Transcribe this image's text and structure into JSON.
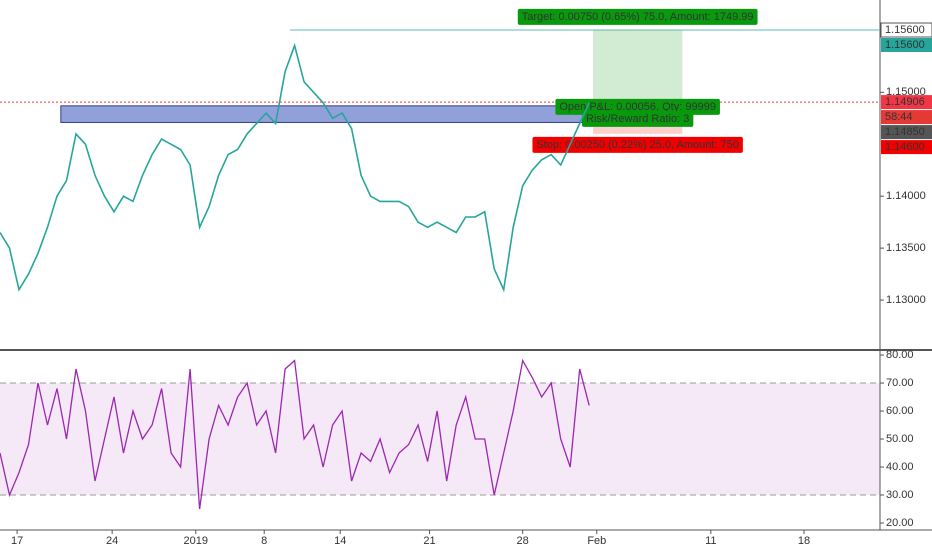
{
  "chart_data": [
    {
      "type": "line",
      "color": "#26a69a",
      "xlim": [
        0,
        46.3
      ],
      "ylim": [
        1.12519,
        1.15889
      ],
      "yticks": [
        {
          "value": 1.13,
          "label": "1.13000"
        },
        {
          "value": 1.135,
          "label": "1.13500"
        },
        {
          "value": 1.14,
          "label": "1.14000"
        },
        {
          "value": 1.15,
          "label": "1.15000"
        }
      ],
      "x": [
        0,
        0.5,
        1,
        1.5,
        2,
        2.5,
        3,
        3.5,
        4,
        4.5,
        5,
        5.5,
        6,
        6.5,
        7,
        7.5,
        8,
        8.5,
        9,
        9.5,
        10,
        10.5,
        11,
        11.5,
        12,
        12.5,
        13,
        13.5,
        14,
        14.5,
        15,
        15.5,
        16,
        16.5,
        17,
        17.5,
        18,
        18.5,
        19,
        19.5,
        20,
        20.5,
        21,
        21.5,
        22,
        22.5,
        23,
        23.5,
        24,
        24.5,
        25,
        25.5,
        26,
        26.5,
        27,
        27.5,
        28,
        28.5,
        29,
        29.5,
        30,
        30.5,
        31
      ],
      "values": [
        1.1365,
        1.135,
        1.131,
        1.1325,
        1.1345,
        1.137,
        1.14,
        1.1415,
        1.146,
        1.145,
        1.142,
        1.14,
        1.1385,
        1.14,
        1.1395,
        1.142,
        1.144,
        1.1455,
        1.145,
        1.1445,
        1.143,
        1.137,
        1.139,
        1.142,
        1.144,
        1.1445,
        1.146,
        1.147,
        1.148,
        1.147,
        1.152,
        1.1545,
        1.151,
        1.15,
        1.149,
        1.1475,
        1.148,
        1.1465,
        1.142,
        1.14,
        1.1395,
        1.1395,
        1.1395,
        1.139,
        1.1375,
        1.137,
        1.1375,
        1.137,
        1.1365,
        1.138,
        1.138,
        1.1385,
        1.133,
        1.131,
        1.137,
        1.141,
        1.1425,
        1.1435,
        1.144,
        1.143,
        1.145,
        1.147,
        1.149
      ],
      "zone": {
        "x": [
          3.2,
          31.0
        ],
        "top": 1.1487,
        "bottom": 1.1471,
        "color": "#7f8fd4"
      },
      "position": {
        "x": [
          31.2,
          35.9
        ],
        "entry": 1.14906,
        "target": 1.156,
        "stop": 1.146,
        "target_label": "Target: 0.00750 (0.65%) 75.0, Amount: 1749.99",
        "pnl_label": "Open P&L: 0.00056, Qty: 99999",
        "ratio_label": "Risk/Reward Ratio: 3",
        "stop_label": "Stop: 0.00250 (0.22%) 25.0, Amount: 750"
      },
      "price_tags": [
        {
          "value": 1.156,
          "label": "1.15600",
          "color": "#ffffff"
        },
        {
          "value": 1.156,
          "label": "1.15600",
          "color": "#26a69a"
        },
        {
          "value": 1.14906,
          "label": "1.14906",
          "color": "#f23645"
        },
        {
          "label": "58:44",
          "color": "#e53935"
        },
        {
          "value": 1.1485,
          "label": "1.14850",
          "color": "#555555"
        },
        {
          "value": 1.146,
          "label": "1.14600",
          "color": "#f20000"
        }
      ]
    },
    {
      "type": "line",
      "color": "#9c27b0",
      "xlim": [
        0,
        46.3
      ],
      "ylim": [
        17.5,
        81.8
      ],
      "yticks": [
        {
          "value": 20,
          "label": "20.00"
        },
        {
          "value": 30,
          "label": "30.00"
        },
        {
          "value": 40,
          "label": "40.00"
        },
        {
          "value": 50,
          "label": "50.00"
        },
        {
          "value": 60,
          "label": "60.00"
        },
        {
          "value": 70,
          "label": "70.00"
        },
        {
          "value": 80,
          "label": "80.00"
        }
      ],
      "band": [
        30,
        70
      ],
      "xticks": [
        {
          "value": 0.9,
          "label": "17"
        },
        {
          "value": 5.9,
          "label": "24"
        },
        {
          "value": 10.3,
          "label": "2019"
        },
        {
          "value": 13.9,
          "label": "8"
        },
        {
          "value": 17.9,
          "label": "14"
        },
        {
          "value": 22.6,
          "label": "21"
        },
        {
          "value": 27.5,
          "label": "28"
        },
        {
          "value": 31.4,
          "label": "Feb"
        },
        {
          "value": 37.4,
          "label": "11"
        },
        {
          "value": 42.3,
          "label": "18"
        }
      ],
      "x": [
        0,
        0.5,
        1,
        1.5,
        2,
        2.5,
        3,
        3.5,
        4,
        4.5,
        5,
        5.5,
        6,
        6.5,
        7,
        7.5,
        8,
        8.5,
        9,
        9.5,
        10,
        10.5,
        11,
        11.5,
        12,
        12.5,
        13,
        13.5,
        14,
        14.5,
        15,
        15.5,
        16,
        16.5,
        17,
        17.5,
        18,
        18.5,
        19,
        19.5,
        20,
        20.5,
        21,
        21.5,
        22,
        22.5,
        23,
        23.5,
        24,
        24.5,
        25,
        25.5,
        26,
        26.5,
        27,
        27.5,
        28,
        28.5,
        29,
        29.5,
        30,
        30.5,
        31
      ],
      "values": [
        45,
        30,
        38,
        48,
        70,
        55,
        68,
        50,
        75,
        60,
        35,
        50,
        65,
        45,
        60,
        50,
        55,
        68,
        45,
        40,
        75,
        25,
        50,
        62,
        55,
        65,
        70,
        55,
        60,
        45,
        75,
        78,
        50,
        55,
        40,
        55,
        60,
        35,
        45,
        42,
        50,
        38,
        45,
        48,
        55,
        42,
        60,
        35,
        55,
        65,
        50,
        50,
        30,
        45,
        60,
        78,
        72,
        65,
        70,
        50,
        40,
        75,
        62
      ]
    }
  ]
}
